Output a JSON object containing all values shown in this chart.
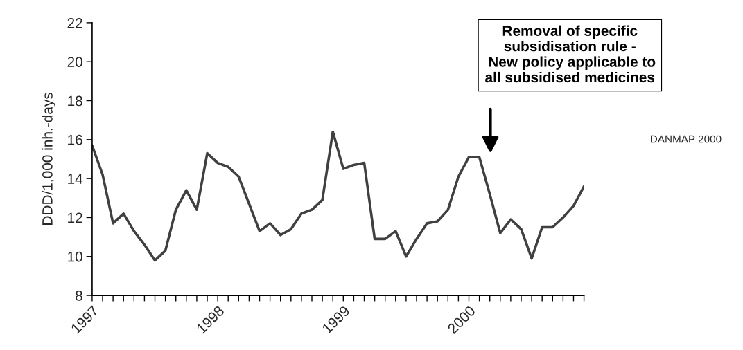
{
  "chart_data": {
    "type": "line",
    "categories": [
      "1997",
      null,
      null,
      null,
      null,
      null,
      null,
      null,
      null,
      null,
      null,
      null,
      "1998",
      null,
      null,
      null,
      null,
      null,
      null,
      null,
      null,
      null,
      null,
      null,
      "1999",
      null,
      null,
      null,
      null,
      null,
      null,
      null,
      null,
      null,
      null,
      null,
      "2000",
      null,
      null,
      null,
      null,
      null,
      null,
      null,
      null,
      null,
      null,
      null
    ],
    "values": [
      15.7,
      14.2,
      11.7,
      12.2,
      11.3,
      10.6,
      9.8,
      10.3,
      12.4,
      13.4,
      12.4,
      15.3,
      14.8,
      14.6,
      14.1,
      12.7,
      11.3,
      11.7,
      11.1,
      11.4,
      12.2,
      12.4,
      12.9,
      16.4,
      14.5,
      14.7,
      14.8,
      10.9,
      10.9,
      11.3,
      10.0,
      10.9,
      11.7,
      11.8,
      12.4,
      14.1,
      15.1,
      15.1,
      13.2,
      11.2,
      11.9,
      11.4,
      9.9,
      11.5,
      11.5,
      12.0,
      12.6,
      13.6
    ],
    "color": "#404040",
    "ylabel": "DDD/1,000 inh.-days",
    "ylim": [
      8,
      22
    ],
    "yticks": [
      8,
      10,
      12,
      14,
      16,
      18,
      20,
      22
    ],
    "annotations": [
      "Removal of specific\nsubsidisation rule -\n New policy applicable to\nall subsidised medicines",
      "DANMAP 2000"
    ]
  }
}
